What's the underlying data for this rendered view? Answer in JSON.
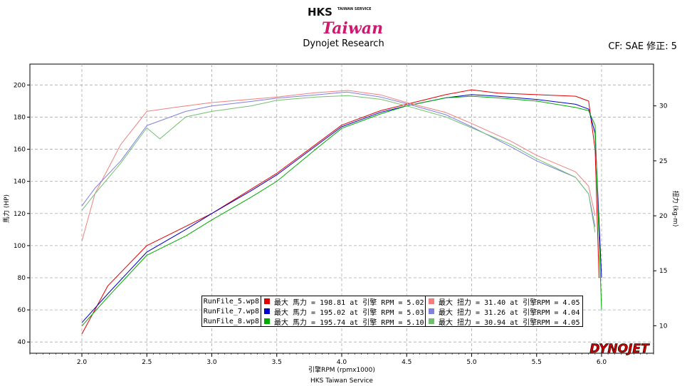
{
  "header": {
    "logo_brand": "HKS",
    "logo_small": "TAIWAN SERVICE",
    "logo_script": "Taiwan",
    "subtitle": "Dynojet Research",
    "correction": "CF: SAE 修正: 5"
  },
  "footer": {
    "caption": "HKS Taiwan Service",
    "watermark": "DYNOJET"
  },
  "colors": {
    "run5_hp": "#e00000",
    "run7_hp": "#0000cc",
    "run8_hp": "#00aa00",
    "run5_tq": "#f08080",
    "run7_tq": "#8080e0",
    "run8_tq": "#70c070"
  },
  "legend": [
    {
      "file": "RunFile_5.wp8",
      "hp_text": "最大 馬力 = 198.81 at 引擎 RPM = 5.02",
      "tq_text": "最大 扭力 = 31.40 at 引擎RPM = 4.05",
      "hp_color": "#e00000",
      "tq_color": "#f08080"
    },
    {
      "file": "RunFile_7.wp8",
      "hp_text": "最大 馬力 = 195.02 at 引擎 RPM = 5.03",
      "tq_text": "最大 扭力 = 31.26 at 引擎RPM = 4.04",
      "hp_color": "#0000cc",
      "tq_color": "#8080e0"
    },
    {
      "file": "RunFile_8.wp8",
      "hp_text": "最大 馬力 = 195.74 at 引擎 RPM = 5.10",
      "tq_text": "最大 扭力 = 30.94 at 引擎RPM = 4.05",
      "hp_color": "#00aa00",
      "tq_color": "#70c070"
    }
  ],
  "chart_data": {
    "type": "line",
    "xlabel": "引擎RPM (rpmx1000)",
    "ylabel": "馬力 (HP)",
    "y2label": "扭力 (kg-m)",
    "xlim": [
      1.6,
      6.4
    ],
    "ylim": [
      33,
      213
    ],
    "y2lim": [
      7.5,
      33.8
    ],
    "x_ticks": [
      "2.0",
      "2.5",
      "3.0",
      "3.5",
      "4.0",
      "4.5",
      "5.0",
      "5.5",
      "6.0"
    ],
    "y_ticks": [
      "40",
      "60",
      "80",
      "100",
      "120",
      "140",
      "160",
      "180",
      "200"
    ],
    "y2_ticks": [
      "10",
      "15",
      "20",
      "25",
      "30"
    ],
    "grid": true,
    "series": [
      {
        "name": "RunFile_5.wp8",
        "kind": "hp",
        "axis": "left",
        "x": [
          2.0,
          2.2,
          2.5,
          2.8,
          3.0,
          3.3,
          3.5,
          3.8,
          4.0,
          4.3,
          4.5,
          4.8,
          5.0,
          5.2,
          5.5,
          5.8,
          5.9,
          5.95,
          5.98
        ],
        "y": [
          45,
          75,
          100,
          112,
          120,
          135,
          145,
          163,
          175,
          184,
          188,
          194,
          197,
          195,
          194,
          193,
          190,
          160,
          80
        ]
      },
      {
        "name": "RunFile_7.wp8",
        "kind": "hp",
        "axis": "left",
        "x": [
          2.0,
          2.2,
          2.5,
          2.8,
          3.0,
          3.3,
          3.5,
          3.8,
          4.0,
          4.3,
          4.5,
          4.8,
          5.0,
          5.2,
          5.5,
          5.8,
          5.9,
          5.95,
          6.0
        ],
        "y": [
          52,
          70,
          96,
          110,
          120,
          134,
          144,
          162,
          174,
          183,
          187,
          192,
          194,
          193,
          191,
          188,
          185,
          170,
          80
        ]
      },
      {
        "name": "RunFile_8.wp8",
        "kind": "hp",
        "axis": "left",
        "x": [
          2.0,
          2.2,
          2.5,
          2.8,
          3.0,
          3.3,
          3.5,
          3.8,
          4.0,
          4.3,
          4.5,
          4.8,
          5.0,
          5.2,
          5.5,
          5.8,
          5.9,
          5.95,
          6.0
        ],
        "y": [
          50,
          68,
          94,
          106,
          116,
          130,
          140,
          160,
          173,
          182,
          187,
          192,
          193,
          192,
          190,
          186,
          184,
          175,
          60
        ]
      },
      {
        "name": "RunFile_5.wp8",
        "kind": "tq",
        "axis": "right",
        "x": [
          2.0,
          2.1,
          2.3,
          2.5,
          2.8,
          3.0,
          3.3,
          3.5,
          3.8,
          4.05,
          4.3,
          4.5,
          4.8,
          5.0,
          5.3,
          5.5,
          5.8,
          5.9,
          5.95
        ],
        "y": [
          17.7,
          22.0,
          26.5,
          29.5,
          30.0,
          30.3,
          30.6,
          30.8,
          31.2,
          31.4,
          31.0,
          30.3,
          29.4,
          28.4,
          26.8,
          25.5,
          24.0,
          22.7,
          20.0
        ]
      },
      {
        "name": "RunFile_7.wp8",
        "kind": "tq",
        "axis": "right",
        "x": [
          2.0,
          2.1,
          2.3,
          2.5,
          2.8,
          3.0,
          3.3,
          3.5,
          3.8,
          4.04,
          4.3,
          4.5,
          4.8,
          5.0,
          5.3,
          5.5,
          5.8,
          5.9,
          5.95
        ],
        "y": [
          20.9,
          22.5,
          25.0,
          28.2,
          29.5,
          30.0,
          30.4,
          30.7,
          31.0,
          31.26,
          30.8,
          30.2,
          29.2,
          28.1,
          26.3,
          25.0,
          23.5,
          22.0,
          19.0
        ]
      },
      {
        "name": "RunFile_8.wp8",
        "kind": "tq",
        "axis": "right",
        "x": [
          2.0,
          2.1,
          2.3,
          2.5,
          2.6,
          2.8,
          3.0,
          3.3,
          3.5,
          3.8,
          4.05,
          4.3,
          4.5,
          4.8,
          5.0,
          5.3,
          5.5,
          5.8,
          5.9,
          5.95
        ],
        "y": [
          20.5,
          22.0,
          24.8,
          28.0,
          27.0,
          29.0,
          29.5,
          30.0,
          30.5,
          30.8,
          30.94,
          30.6,
          30.0,
          29.0,
          28.0,
          26.5,
          25.2,
          23.5,
          22.0,
          18.5
        ]
      }
    ]
  }
}
